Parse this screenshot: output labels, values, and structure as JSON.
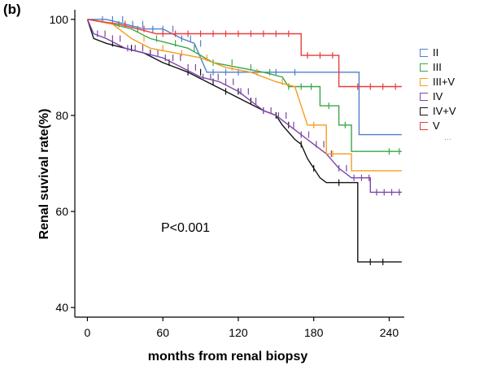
{
  "panel_label": "(b)",
  "annotation": "P<0.001",
  "legend_more": "...",
  "chart_data": {
    "type": "line",
    "title": "",
    "xlabel": "months from renal biopsy",
    "ylabel": "Renal suvival rate(%)",
    "xlim": [
      -10,
      252
    ],
    "ylim": [
      38,
      102
    ],
    "xticks": [
      0,
      60,
      120,
      180,
      240
    ],
    "yticks": [
      40,
      60,
      80,
      100
    ],
    "grid": false,
    "legend_position": "right",
    "series": [
      {
        "name": "II",
        "color": "#4f7fce",
        "points": [
          [
            0,
            100
          ],
          [
            15,
            100
          ],
          [
            30,
            99
          ],
          [
            45,
            98
          ],
          [
            60,
            98
          ],
          [
            75,
            96
          ],
          [
            85,
            95
          ],
          [
            95,
            89
          ],
          [
            140,
            89
          ],
          [
            216,
            89
          ],
          [
            216,
            76
          ],
          [
            250,
            76
          ]
        ],
        "censors": [
          12,
          20,
          28,
          36,
          44,
          52,
          60,
          68,
          75,
          82,
          90,
          100,
          110,
          120,
          135,
          150,
          165,
          200
        ]
      },
      {
        "name": "III",
        "color": "#3aa64a",
        "points": [
          [
            0,
            100
          ],
          [
            20,
            99
          ],
          [
            35,
            98
          ],
          [
            50,
            96
          ],
          [
            65,
            95
          ],
          [
            80,
            94
          ],
          [
            100,
            91
          ],
          [
            120,
            90
          ],
          [
            140,
            89
          ],
          [
            155,
            88
          ],
          [
            160,
            86
          ],
          [
            185,
            86
          ],
          [
            185,
            82
          ],
          [
            200,
            82
          ],
          [
            200,
            78
          ],
          [
            210,
            78
          ],
          [
            210,
            72.5
          ],
          [
            250,
            72.5
          ]
        ],
        "censors": [
          25,
          40,
          55,
          70,
          85,
          100,
          115,
          130,
          145,
          160,
          170,
          178,
          192,
          205,
          240,
          248
        ]
      },
      {
        "name": "III+V",
        "color": "#f59d1e",
        "points": [
          [
            0,
            100
          ],
          [
            20,
            99
          ],
          [
            35,
            96
          ],
          [
            50,
            94
          ],
          [
            70,
            93
          ],
          [
            90,
            92
          ],
          [
            110,
            90
          ],
          [
            130,
            89
          ],
          [
            150,
            87
          ],
          [
            165,
            86
          ],
          [
            170,
            82
          ],
          [
            175,
            78
          ],
          [
            190,
            78
          ],
          [
            190,
            72
          ],
          [
            210,
            72
          ],
          [
            210,
            68.5
          ],
          [
            250,
            68.5
          ]
        ],
        "censors": [
          30,
          45,
          60,
          75,
          95,
          115,
          135,
          155,
          180,
          195
        ]
      },
      {
        "name": "IV",
        "color": "#7e45a8",
        "points": [
          [
            0,
            100
          ],
          [
            5,
            97
          ],
          [
            15,
            96
          ],
          [
            30,
            94
          ],
          [
            45,
            93
          ],
          [
            60,
            92
          ],
          [
            75,
            90
          ],
          [
            90,
            88
          ],
          [
            105,
            87
          ],
          [
            120,
            85
          ],
          [
            130,
            83
          ],
          [
            140,
            81
          ],
          [
            150,
            80
          ],
          [
            160,
            78
          ],
          [
            170,
            76
          ],
          [
            180,
            74
          ],
          [
            190,
            72
          ],
          [
            200,
            69
          ],
          [
            210,
            67
          ],
          [
            225,
            67
          ],
          [
            225,
            64
          ],
          [
            250,
            64
          ]
        ],
        "censors": [
          8,
          14,
          20,
          26,
          32,
          38,
          44,
          50,
          56,
          62,
          68,
          74,
          80,
          86,
          92,
          98,
          104,
          110,
          116,
          122,
          128,
          134,
          140,
          146,
          152,
          158,
          164,
          170,
          176,
          182,
          188,
          194,
          200,
          206,
          212,
          218,
          224,
          230,
          236,
          242,
          248
        ]
      },
      {
        "name": "IV+V",
        "color": "#111111",
        "points": [
          [
            0,
            100
          ],
          [
            5,
            96
          ],
          [
            15,
            95
          ],
          [
            30,
            94
          ],
          [
            45,
            93
          ],
          [
            60,
            91
          ],
          [
            70,
            90
          ],
          [
            80,
            89
          ],
          [
            95,
            87
          ],
          [
            110,
            85
          ],
          [
            125,
            83
          ],
          [
            140,
            81
          ],
          [
            150,
            80
          ],
          [
            155,
            78
          ],
          [
            165,
            75
          ],
          [
            170,
            74
          ],
          [
            175,
            71
          ],
          [
            180,
            69
          ],
          [
            185,
            67
          ],
          [
            190,
            66
          ],
          [
            215,
            66
          ],
          [
            215,
            49.5
          ],
          [
            250,
            49.5
          ]
        ],
        "censors": [
          20,
          35,
          50,
          65,
          80,
          90,
          100,
          110,
          120,
          130,
          140,
          150,
          160,
          170,
          180,
          200,
          225,
          235
        ]
      },
      {
        "name": "V",
        "color": "#ea3b3b",
        "points": [
          [
            0,
            100
          ],
          [
            25,
            99
          ],
          [
            40,
            98
          ],
          [
            55,
            97
          ],
          [
            140,
            97
          ],
          [
            170,
            97
          ],
          [
            170,
            92.5
          ],
          [
            200,
            92.5
          ],
          [
            200,
            86
          ],
          [
            250,
            86
          ]
        ],
        "censors": [
          30,
          45,
          60,
          70,
          80,
          90,
          100,
          110,
          120,
          130,
          140,
          150,
          160,
          175,
          185,
          195,
          215,
          225,
          235,
          245
        ]
      }
    ]
  }
}
